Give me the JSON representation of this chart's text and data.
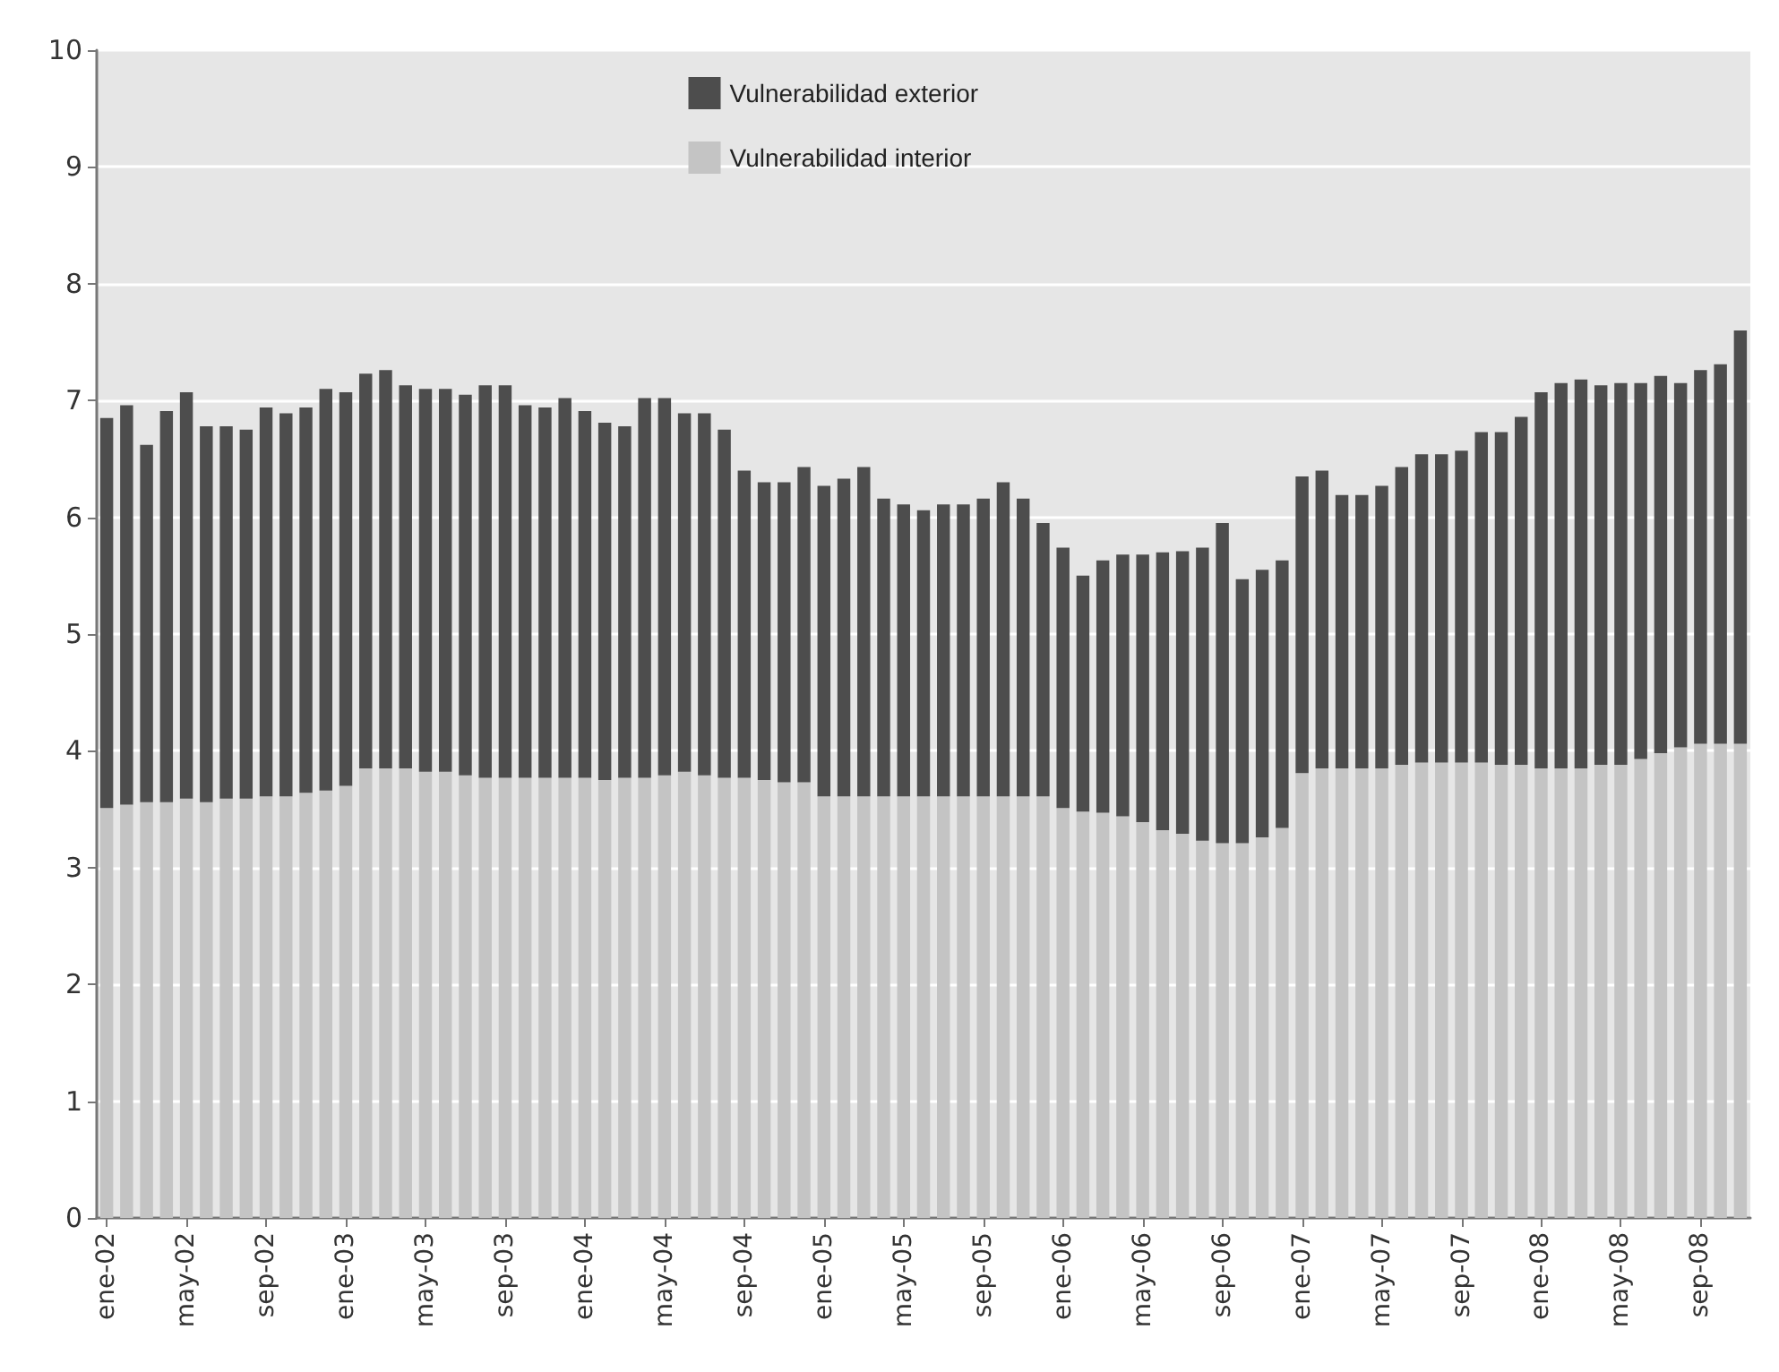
{
  "chart_data": {
    "type": "bar",
    "stacked": true,
    "categories": [
      "ene-02",
      null,
      null,
      null,
      "may-02",
      null,
      null,
      null,
      "sep-02",
      null,
      null,
      null,
      "ene-03",
      null,
      null,
      null,
      "may-03",
      null,
      null,
      null,
      "sep-03",
      null,
      null,
      null,
      "ene-04",
      null,
      null,
      null,
      "may-04",
      null,
      null,
      null,
      "sep-04",
      null,
      null,
      null,
      "ene-05",
      null,
      null,
      null,
      "may-05",
      null,
      null,
      null,
      "sep-05",
      null,
      null,
      null,
      "ene-06",
      null,
      null,
      null,
      "may-06",
      null,
      null,
      null,
      "sep-06",
      null,
      null,
      null,
      "ene-07",
      null,
      null,
      null,
      "may-07",
      null,
      null,
      null,
      "sep-07",
      null,
      null,
      null,
      "ene-08",
      null,
      null,
      null,
      "may-08",
      null,
      null,
      null,
      "sep-08",
      null,
      null
    ],
    "series": [
      {
        "name": "Vulnerabilidad interior",
        "color": "#c4c4c4",
        "values": [
          3.51,
          3.54,
          3.56,
          3.56,
          3.59,
          3.56,
          3.59,
          3.59,
          3.61,
          3.61,
          3.64,
          3.66,
          3.7,
          3.85,
          3.85,
          3.85,
          3.82,
          3.82,
          3.79,
          3.77,
          3.77,
          3.77,
          3.77,
          3.77,
          3.77,
          3.75,
          3.77,
          3.77,
          3.79,
          3.82,
          3.79,
          3.77,
          3.77,
          3.75,
          3.73,
          3.73,
          3.61,
          3.61,
          3.61,
          3.61,
          3.61,
          3.61,
          3.61,
          3.61,
          3.61,
          3.61,
          3.61,
          3.61,
          3.51,
          3.48,
          3.47,
          3.44,
          3.39,
          3.32,
          3.29,
          3.23,
          3.21,
          3.21,
          3.26,
          3.34,
          3.81,
          3.85,
          3.85,
          3.85,
          3.85,
          3.88,
          3.9,
          3.9,
          3.9,
          3.9,
          3.88,
          3.88,
          3.85,
          3.85,
          3.85,
          3.88,
          3.88,
          3.93,
          3.98,
          4.03,
          4.06,
          4.06,
          4.06
        ]
      },
      {
        "name": "Vulnerabilidad exterior",
        "color": "#4d4d4d",
        "values": [
          3.34,
          3.42,
          3.06,
          3.35,
          3.48,
          3.22,
          3.19,
          3.16,
          3.33,
          3.28,
          3.3,
          3.44,
          3.37,
          3.38,
          3.41,
          3.28,
          3.28,
          3.28,
          3.26,
          3.36,
          3.36,
          3.19,
          3.17,
          3.25,
          3.14,
          3.06,
          3.01,
          3.25,
          3.23,
          3.07,
          3.1,
          2.98,
          2.63,
          2.55,
          2.57,
          2.7,
          2.66,
          2.72,
          2.82,
          2.55,
          2.5,
          2.45,
          2.5,
          2.5,
          2.55,
          2.69,
          2.55,
          2.34,
          2.23,
          2.02,
          2.16,
          2.24,
          2.29,
          2.38,
          2.42,
          2.51,
          2.74,
          2.26,
          2.29,
          2.29,
          2.54,
          2.55,
          2.34,
          2.34,
          2.42,
          2.55,
          2.64,
          2.64,
          2.67,
          2.83,
          2.85,
          2.98,
          3.22,
          3.3,
          3.33,
          3.25,
          3.27,
          3.22,
          3.23,
          3.12,
          3.2,
          3.25,
          3.54
        ]
      }
    ],
    "ylim": [
      0,
      10
    ],
    "yticks": [
      0,
      1,
      2,
      3,
      4,
      5,
      6,
      7,
      8,
      9,
      10
    ],
    "grid": "y",
    "legend": "top"
  }
}
